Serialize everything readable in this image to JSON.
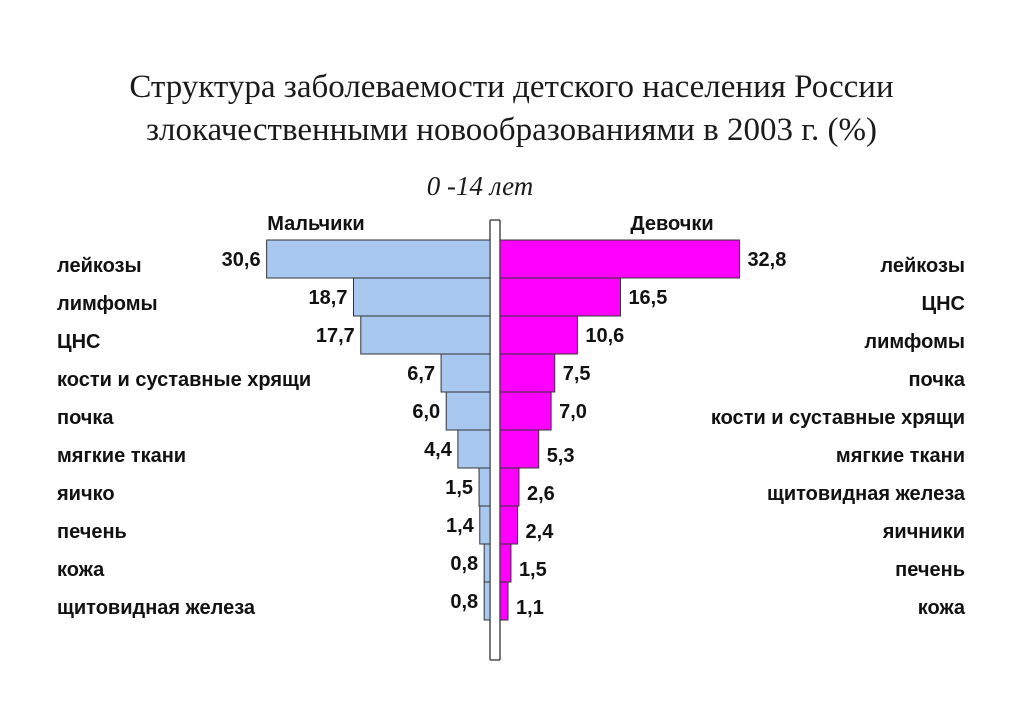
{
  "title_line1": "Структура заболеваемости детского населения России",
  "title_line2": "злокачественными новообразованиями в 2003 г. (%)",
  "subtitle": "0 -14 лет",
  "colors": {
    "boys": "#a8c8f0",
    "girls": "#ff00ff",
    "outline": "#333333"
  },
  "chart_data": [
    {
      "type": "bar",
      "orientation": "horizontal",
      "direction": "left",
      "title": "Мальчики",
      "categories": [
        "лейкозы",
        "лимфомы",
        "ЦНС",
        "кости и суставные хрящи",
        "почка",
        "мягкие ткани",
        "яичко",
        "печень",
        "кожа",
        "щитовидная железа"
      ],
      "values": [
        30.6,
        18.7,
        17.7,
        6.7,
        6.0,
        4.4,
        1.5,
        1.4,
        0.8,
        0.8
      ],
      "value_labels": [
        "30,6",
        "18,7",
        "17,7",
        "6,7",
        "6,0",
        "4,4",
        "1,5",
        "1,4",
        "0,8",
        "0,8"
      ]
    },
    {
      "type": "bar",
      "orientation": "horizontal",
      "direction": "right",
      "title": "Девочки",
      "categories": [
        "лейкозы",
        "ЦНС",
        "лимфомы",
        "почка",
        "кости и суставные хрящи",
        "мягкие ткани",
        "щитовидная железа",
        "яичники",
        "печень",
        "кожа"
      ],
      "values": [
        32.8,
        16.5,
        10.6,
        7.5,
        7.0,
        5.3,
        2.6,
        2.4,
        1.5,
        1.1
      ],
      "value_labels": [
        "32,8",
        "16,5",
        "10,6",
        "7,5",
        "7,0",
        "5,3",
        "2,6",
        "2,4",
        "1,5",
        "1,1"
      ]
    }
  ]
}
